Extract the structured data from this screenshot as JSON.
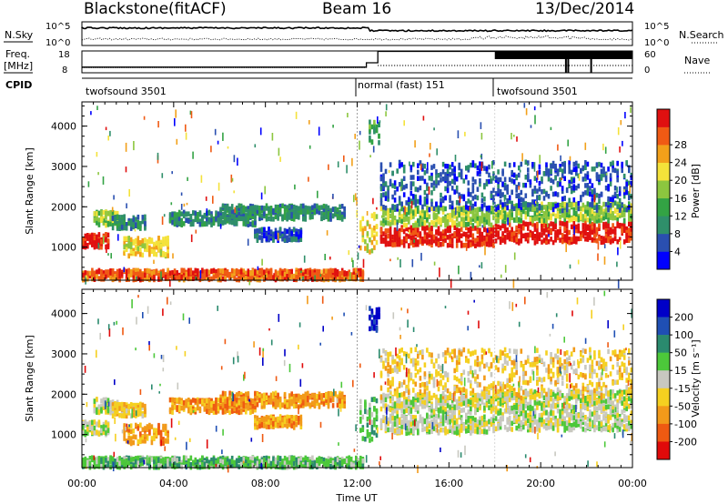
{
  "header": {
    "station": "Blackstone",
    "method": "(fitACF)",
    "beam": "Beam 16",
    "date": "13/Dec/2014"
  },
  "chart_data": [
    {
      "type": "line",
      "panel": "noise",
      "left_label": "N.Sky",
      "right_label": "N.Search",
      "left_ticks": [
        "10^5",
        "10^0"
      ],
      "right_ticks": [
        "10^5",
        "10^0"
      ]
    },
    {
      "type": "line",
      "panel": "frequency",
      "left_label_line1": "Freq.",
      "left_label_line2": "[MHz]",
      "right_label": "Nave",
      "left_ticks": [
        18,
        8
      ],
      "right_ticks": [
        60,
        0
      ],
      "freq_steps": [
        {
          "x": 0,
          "y": 10.6
        },
        {
          "x": 12.4,
          "y": 10.6
        },
        {
          "x": 12.4,
          "y": 12.6
        },
        {
          "x": 12.9,
          "y": 12.6
        },
        {
          "x": 12.9,
          "y": 17.8
        },
        {
          "x": 24,
          "y": 17.8
        }
      ]
    },
    {
      "type": "table",
      "panel": "cpid",
      "label": "CPID",
      "segments": [
        {
          "start": 0,
          "end": 12.0,
          "text": "twofsound 3501"
        },
        {
          "start": 12.0,
          "end": 18.0,
          "text": "normal (fast) 151"
        },
        {
          "start": 18.0,
          "end": 24.0,
          "text": "twofsound 3501"
        }
      ]
    },
    {
      "type": "heatmap",
      "panel": "power",
      "ylabel": "Slant Range [km]",
      "ylim": [
        180,
        4600
      ],
      "yticks": [
        1000,
        2000,
        3000,
        4000
      ],
      "colorbar_label": "Power [dB]",
      "colorbar_ticks": [
        4,
        8,
        12,
        16,
        20,
        24,
        28
      ],
      "colorbar_range": [
        0,
        32
      ],
      "colors": [
        "#0000ff",
        "#2a4fb0",
        "#2f8f6a",
        "#33a344",
        "#8cc63f",
        "#f4e23a",
        "#f2a01a",
        "#f05a14",
        "#e01010"
      ]
    },
    {
      "type": "heatmap",
      "panel": "velocity",
      "ylabel": "Slant Range [km]",
      "ylim": [
        180,
        4600
      ],
      "yticks": [
        1000,
        2000,
        3000,
        4000
      ],
      "colorbar_label": "Velocity [m s⁻¹]",
      "colorbar_ticks": [
        200,
        100,
        50,
        15,
        -15,
        -50,
        -100,
        -200
      ],
      "colors": [
        "#0000c8",
        "#1f4fb4",
        "#2a8a6e",
        "#4cc83a",
        "#c8c8c0",
        "#f5d020",
        "#f29a1a",
        "#ef5a12",
        "#e00a0a"
      ]
    }
  ],
  "xaxis": {
    "label": "Time UT",
    "ticks": [
      "00:00",
      "04:00",
      "08:00",
      "12:00",
      "16:00",
      "20:00",
      "00:00"
    ],
    "xlim": [
      0,
      24
    ]
  }
}
